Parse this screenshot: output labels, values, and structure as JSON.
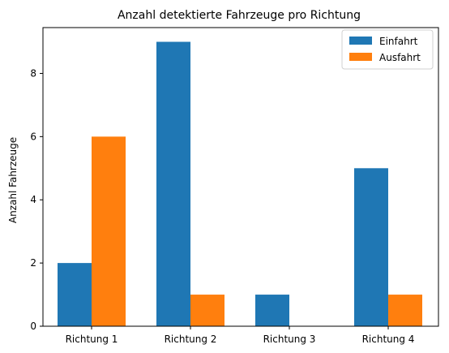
{
  "chart_data": {
    "type": "bar",
    "title": "Anzahl detektierte Fahrzeuge pro Richtung",
    "xlabel": "",
    "ylabel": "Anzahl Fahrzeuge",
    "categories": [
      "Richtung 1",
      "Richtung 2",
      "Richtung 3",
      "Richtung 4"
    ],
    "series": [
      {
        "name": "Einfahrt",
        "values": [
          2,
          9,
          1,
          5
        ],
        "color": "#1f77b4"
      },
      {
        "name": "Ausfahrt",
        "values": [
          6,
          1,
          0,
          1
        ],
        "color": "#ff7f0e"
      }
    ],
    "ylim": [
      0,
      9.45
    ],
    "yticks": [
      0,
      2,
      4,
      6,
      8
    ],
    "legend": "top-right",
    "grid": false
  }
}
